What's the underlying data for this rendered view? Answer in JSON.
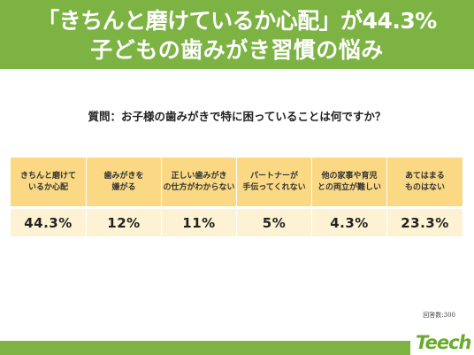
{
  "header": {
    "line1": "「きちんと磨けているか心配」が44.3%",
    "line2": "子どもの歯みがき習慣の悩み"
  },
  "question": "質問：お子様の歯みがきで特に困っていることは何ですか？",
  "chart_data": {
    "type": "table",
    "categories": [
      "きちんと磨けて\nいるか心配",
      "歯みがきを\n嫌がる",
      "正しい歯みがき\nの仕方がわからない",
      "パートナーが\n手伝ってくれない",
      "他の家事や育児\nとの両立が難しい",
      "あてはまる\nものはない"
    ],
    "values": [
      44.3,
      12,
      11,
      5,
      4.3,
      23.3
    ],
    "value_labels": [
      "44.3%",
      "12%",
      "11%",
      "5%",
      "4.3%",
      "23.3%"
    ],
    "unit": "%"
  },
  "respondents": "回答数:300",
  "logo": {
    "name": "logo-teech",
    "text": "Teech"
  },
  "colors": {
    "brand_green": "#7cb342",
    "header_cell": "#fbd984",
    "value_cell": "#fdf3d4",
    "logo_green": "#6aab2e"
  }
}
